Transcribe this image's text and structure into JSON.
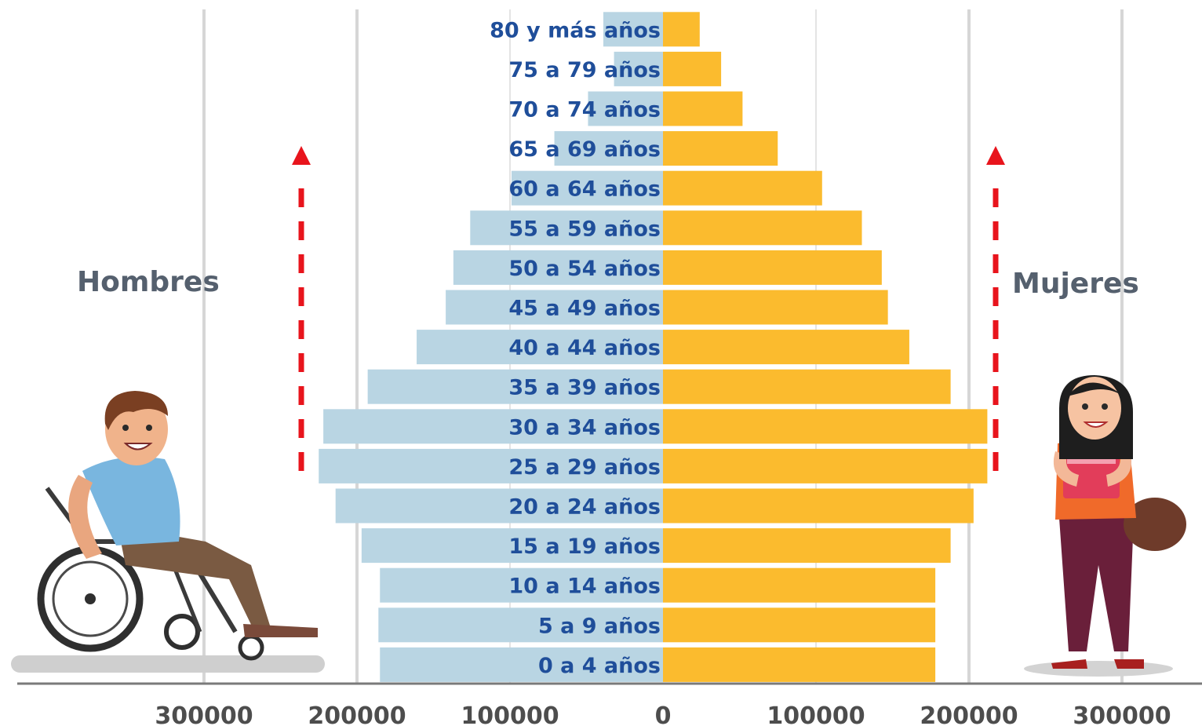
{
  "chart_data": {
    "type": "bar",
    "orientation": "horizontal-population-pyramid",
    "categories": [
      "80 y más años",
      "75 a 79 años",
      "70 a 74 años",
      "65 a 69 años",
      "60 a 64 años",
      "55 a 59 años",
      "50 a 54 años",
      "45 a 49 años",
      "40 a 44 años",
      "35 a 39 años",
      "30 a 34 años",
      "25 a 29 años",
      "20 a 24 años",
      "15 a 19 años",
      "10 a 14 años",
      "5 a  9 años",
      "0 a 4 años"
    ],
    "series": [
      {
        "name": "Hombres",
        "side": "left",
        "color": "#b9d5e3",
        "values": [
          39000,
          32000,
          49000,
          71000,
          99000,
          126000,
          137000,
          142000,
          161000,
          193000,
          222000,
          225000,
          214000,
          197000,
          185000,
          186000,
          185000
        ]
      },
      {
        "name": "Mujeres",
        "side": "right",
        "color": "#fbbb2e",
        "values": [
          24000,
          38000,
          52000,
          75000,
          104000,
          130000,
          143000,
          147000,
          161000,
          188000,
          212000,
          212000,
          203000,
          188000,
          178000,
          178000,
          178000
        ]
      }
    ],
    "x_ticks_left": [
      "300000",
      "200000",
      "100000",
      "0"
    ],
    "x_ticks_right": [
      "100000",
      "200000",
      "300000"
    ],
    "xlim": [
      -300000,
      300000
    ],
    "grid": true
  },
  "labels": {
    "left": "Hombres",
    "right": "Mujeres"
  },
  "colors": {
    "arrow": "#e8141c",
    "grid": "#d6d6d6",
    "axis": "#7a7a7a",
    "age_text": "#1f4e9a"
  }
}
